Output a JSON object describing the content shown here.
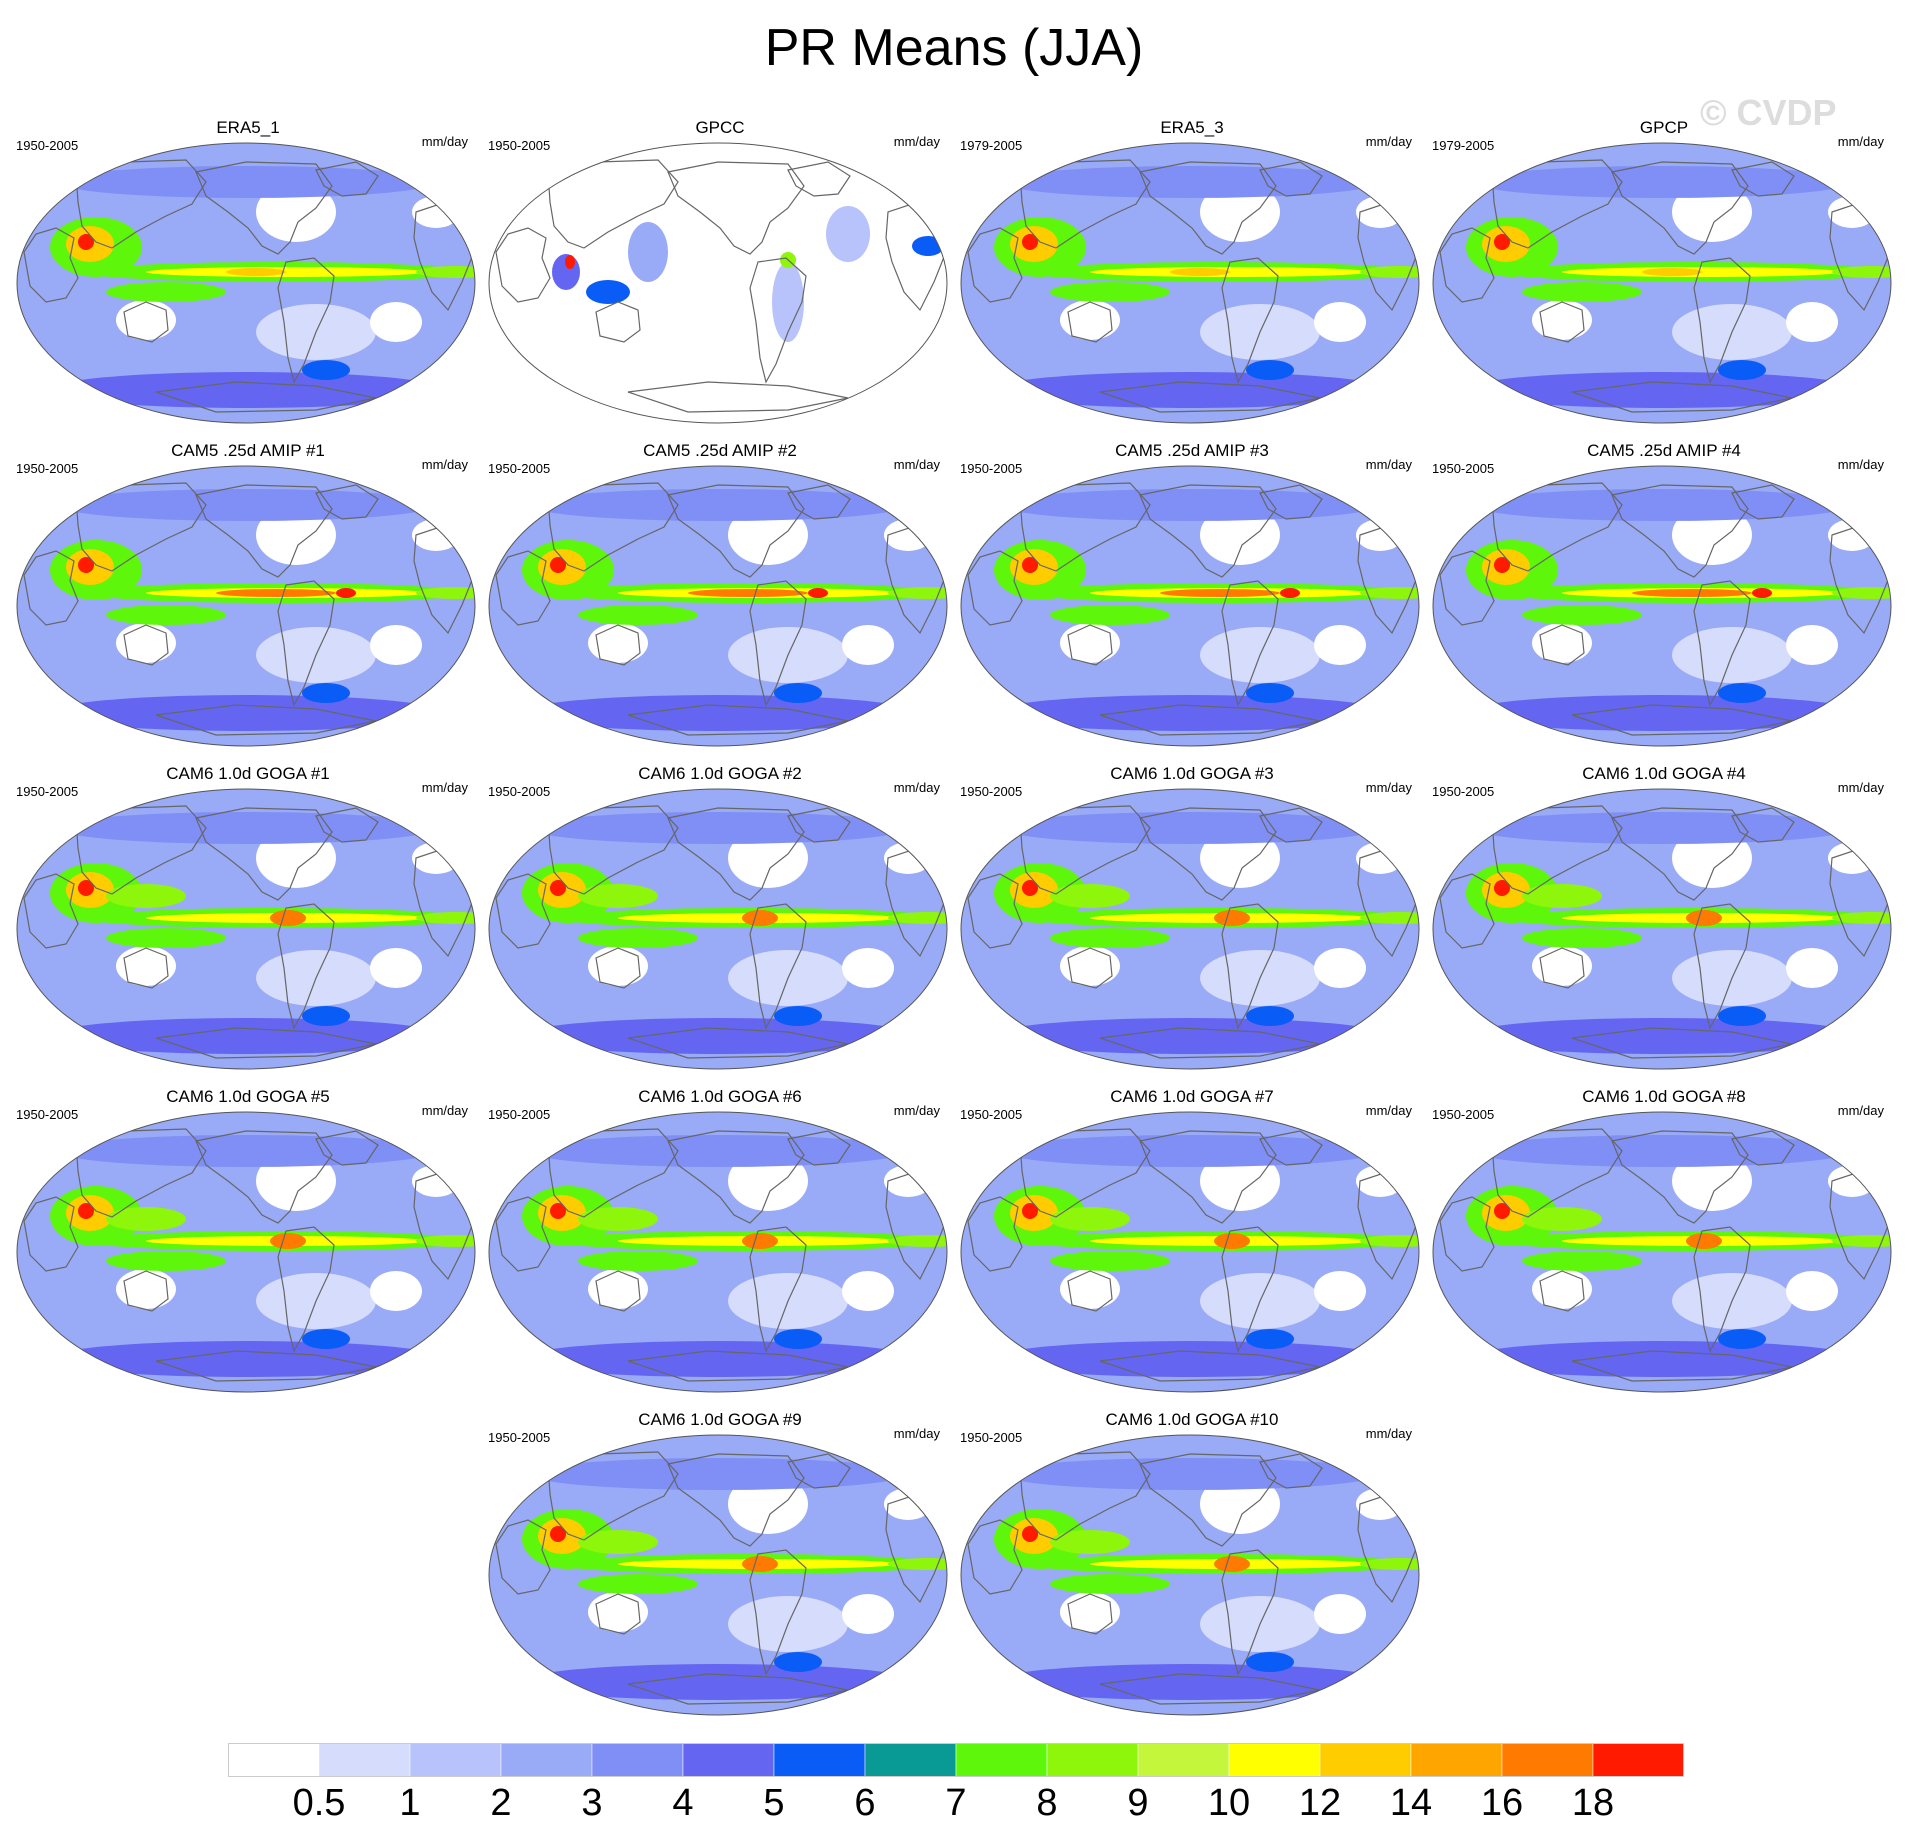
{
  "title": "PR Means (JJA)",
  "watermark": "© CVDP",
  "colors": {
    "bins": [
      "#ffffff",
      "#d6dcfb",
      "#b7c3fa",
      "#99aaf7",
      "#7f8ff5",
      "#6466f2",
      "#0a5cf6",
      "#0a9a96",
      "#5ef60a",
      "#8ef60a",
      "#c4f63c",
      "#ffff00",
      "#ffcc00",
      "#ffa500",
      "#ff7a00",
      "#ff1a00"
    ],
    "coast": "#666666",
    "ocean_bg": "#8fa0f5"
  },
  "colorbar": {
    "labels": [
      "0.5",
      "1",
      "2",
      "3",
      "4",
      "5",
      "6",
      "7",
      "8",
      "9",
      "10",
      "12",
      "14",
      "16",
      "18"
    ]
  },
  "panels": [
    {
      "title": "ERA5_1",
      "period": "1950-2005",
      "units": "mm/day",
      "style": "obs"
    },
    {
      "title": "GPCC",
      "period": "1950-2005",
      "units": "mm/day",
      "style": "land"
    },
    {
      "title": "ERA5_3",
      "period": "1979-2005",
      "units": "mm/day",
      "style": "obs"
    },
    {
      "title": "GPCP",
      "period": "1979-2005",
      "units": "mm/day",
      "style": "obs"
    },
    {
      "title": "CAM5 .25d AMIP #1",
      "period": "1950-2005",
      "units": "mm/day",
      "style": "amip"
    },
    {
      "title": "CAM5 .25d AMIP #2",
      "period": "1950-2005",
      "units": "mm/day",
      "style": "amip"
    },
    {
      "title": "CAM5 .25d AMIP #3",
      "period": "1950-2005",
      "units": "mm/day",
      "style": "amip"
    },
    {
      "title": "CAM5 .25d AMIP #4",
      "period": "1950-2005",
      "units": "mm/day",
      "style": "amip"
    },
    {
      "title": "CAM6 1.0d GOGA #1",
      "period": "1950-2005",
      "units": "mm/day",
      "style": "goga"
    },
    {
      "title": "CAM6 1.0d GOGA #2",
      "period": "1950-2005",
      "units": "mm/day",
      "style": "goga"
    },
    {
      "title": "CAM6 1.0d GOGA #3",
      "period": "1950-2005",
      "units": "mm/day",
      "style": "goga"
    },
    {
      "title": "CAM6 1.0d GOGA #4",
      "period": "1950-2005",
      "units": "mm/day",
      "style": "goga"
    },
    {
      "title": "CAM6 1.0d GOGA #5",
      "period": "1950-2005",
      "units": "mm/day",
      "style": "goga"
    },
    {
      "title": "CAM6 1.0d GOGA #6",
      "period": "1950-2005",
      "units": "mm/day",
      "style": "goga"
    },
    {
      "title": "CAM6 1.0d GOGA #7",
      "period": "1950-2005",
      "units": "mm/day",
      "style": "goga"
    },
    {
      "title": "CAM6 1.0d GOGA #8",
      "period": "1950-2005",
      "units": "mm/day",
      "style": "goga"
    },
    {
      "title": "CAM6 1.0d GOGA #9",
      "period": "1950-2005",
      "units": "mm/day",
      "style": "goga"
    },
    {
      "title": "CAM6 1.0d GOGA #10",
      "period": "1950-2005",
      "units": "mm/day",
      "style": "goga"
    }
  ]
}
